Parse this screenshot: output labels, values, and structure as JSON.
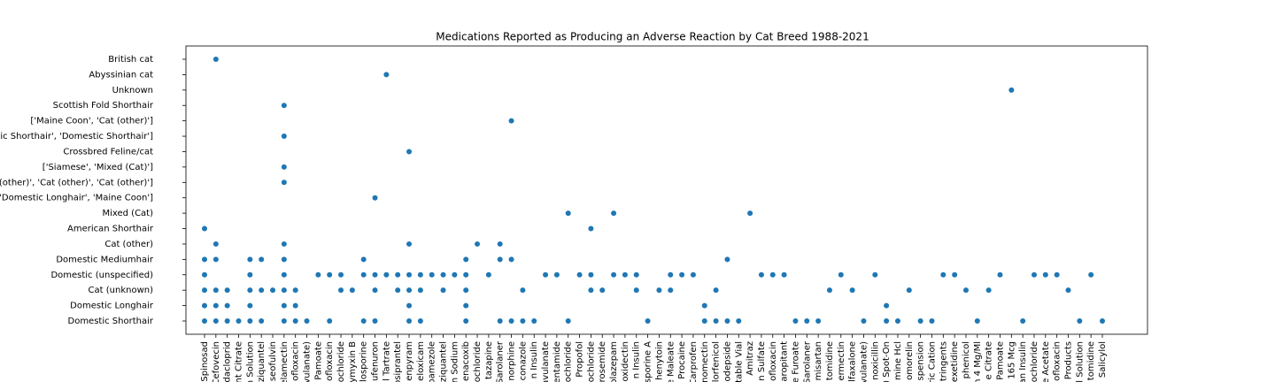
{
  "chart_data": {
    "type": "scatter",
    "title": "Medications Reported as Producing an Adverse Reaction by Cat Breed 1988-2021",
    "color": "#1f77b4",
    "xticks": [
      "Spinosad",
      "Cefovecin",
      "Imidacloprid",
      "nt Citrate",
      "n Solution",
      "ziquantel",
      "iseofulvin",
      "elamectin",
      "ofloxacin",
      "vulanate)",
      "Pamoate",
      "ofloxacin",
      "ochloride",
      "lymyxin B",
      "losporine",
      "ufenuron",
      "l Tartrate",
      "osiprantel",
      "enpyram",
      "eloxicam",
      "bamezole",
      "ziquantel",
      "n Sodium",
      "enacoxib",
      "ochloride",
      "tazapine",
      "Sarolaner",
      "norphine",
      "conazole",
      "n Insulin",
      "avulanate",
      "entamide",
      "ochloride",
      "Propofol",
      "ochloride",
      "rosemide",
      "olazepam",
      "oxidectin",
      "n Insulin",
      "sporine A",
      "henytoin",
      "ne Maleate",
      "Procaine",
      "Carprofen",
      "nomectin",
      "lorfenicol",
      "odepside",
      "table Vial",
      "Amitraz",
      "n Sulfate",
      "ofloxacin",
      "aropitant",
      "e Furoate",
      "Sarolaner",
      "misartan",
      "tomidine",
      "ermectin",
      "lfaxalone",
      "vulanate)",
      "noxicillin",
      ") Spot-On",
      "mine Hcl",
      "omorelin",
      "spension",
      "ric Cation",
      "tringents",
      "exetidine",
      "phenicol",
      "n 4 Mg/Ml",
      "e Citrate",
      "Pamoate",
      "165 Mcg",
      "an Insulin",
      "ochloride",
      "e Acetate",
      "ofloxacin",
      "Products",
      "l Solution",
      "tomidine",
      "Salicylol"
    ],
    "yticks": [
      "Domestic Shorthair",
      "Domestic Longhair",
      "Cat (unknown)",
      "Domestic (unspecified)",
      "Domestic Mediumhair",
      "Cat (other)",
      "American Shorthair",
      "Mixed (Cat)",
      "['Domestic Longhair', 'Maine Coon']",
      "['Cat (other)', 'Cat (other)', 'Cat (other)']",
      "['Siamese', 'Mixed (Cat)']",
      "Crossbred Feline/cat",
      "['Domestic Shorthair', 'Domestic Shorthair']",
      "['Maine Coon', 'Cat (other)']",
      "Scottish Fold Shorthair",
      "Unknown",
      "Abyssinian cat",
      "British cat"
    ],
    "x": [
      0,
      0,
      0,
      0,
      0,
      0,
      1,
      1,
      1,
      1,
      1,
      1,
      2,
      2,
      2,
      3,
      4,
      4,
      4,
      4,
      4,
      5,
      5,
      5,
      6,
      7,
      7,
      7,
      7,
      7,
      7,
      7,
      7,
      7,
      7,
      8,
      8,
      8,
      9,
      10,
      11,
      11,
      12,
      12,
      13,
      14,
      14,
      14,
      15,
      15,
      15,
      15,
      16,
      16,
      17,
      17,
      18,
      18,
      18,
      18,
      18,
      18,
      19,
      19,
      19,
      20,
      21,
      21,
      22,
      23,
      23,
      23,
      23,
      23,
      24,
      25,
      26,
      26,
      26,
      27,
      27,
      27,
      28,
      28,
      29,
      30,
      31,
      32,
      32,
      33,
      34,
      34,
      34,
      35,
      36,
      36,
      37,
      38,
      38,
      39,
      40,
      41,
      41,
      42,
      43,
      44,
      44,
      45,
      45,
      46,
      46,
      47,
      48,
      49,
      50,
      51,
      52,
      53,
      54,
      55,
      56,
      57,
      58,
      59,
      60,
      60,
      61,
      62,
      63,
      64,
      65,
      66,
      67,
      68,
      69,
      70,
      71,
      72,
      73,
      74,
      75,
      76,
      77,
      78,
      79
    ],
    "y": [
      0,
      1,
      2,
      3,
      4,
      6,
      17,
      5,
      4,
      1,
      2,
      0,
      0,
      1,
      2,
      0,
      0,
      1,
      2,
      3,
      4,
      0,
      2,
      4,
      2,
      0,
      1,
      2,
      3,
      4,
      5,
      9,
      10,
      12,
      14,
      0,
      1,
      2,
      0,
      3,
      0,
      3,
      2,
      3,
      2,
      0,
      3,
      4,
      0,
      2,
      3,
      8,
      3,
      16,
      2,
      3,
      0,
      1,
      2,
      3,
      5,
      11,
      0,
      2,
      3,
      3,
      2,
      3,
      3,
      0,
      1,
      2,
      3,
      4,
      5,
      3,
      0,
      4,
      5,
      0,
      4,
      13,
      0,
      2,
      0,
      3,
      3,
      0,
      7,
      3,
      2,
      3,
      6,
      2,
      3,
      7,
      3,
      2,
      3,
      0,
      2,
      2,
      3,
      3,
      3,
      0,
      1,
      0,
      2,
      0,
      4,
      0,
      7,
      3,
      3,
      3,
      0,
      0,
      0,
      2,
      3,
      2,
      0,
      3,
      0,
      1,
      0,
      2,
      0,
      0,
      3,
      3,
      2,
      0,
      2,
      3,
      15,
      0,
      3,
      3,
      3,
      2,
      0,
      3,
      0
    ]
  }
}
